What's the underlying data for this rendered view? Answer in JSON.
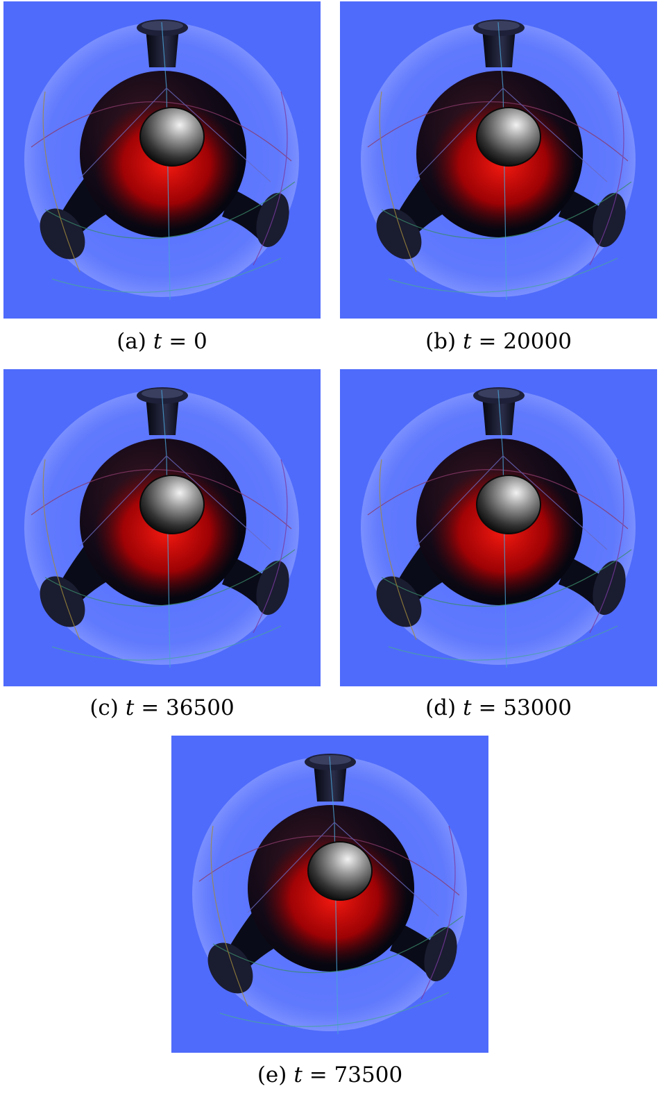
{
  "panels": [
    {
      "label": "(a)",
      "var": "t",
      "eq": "=",
      "value": "0"
    },
    {
      "label": "(b)",
      "var": "t",
      "eq": "=",
      "value": "20000"
    },
    {
      "label": "(c)",
      "var": "t",
      "eq": "=",
      "value": "36500"
    },
    {
      "label": "(d)",
      "var": "t",
      "eq": "=",
      "value": "53000"
    },
    {
      "label": "(e)",
      "var": "t",
      "eq": "=",
      "value": "73500"
    }
  ],
  "colors": {
    "background": "#4f6bfb",
    "shell": "#6f86ff",
    "body_dark": "#0c0f24",
    "red_region": "#d40000",
    "core_sphere": "#8a8a8a"
  }
}
